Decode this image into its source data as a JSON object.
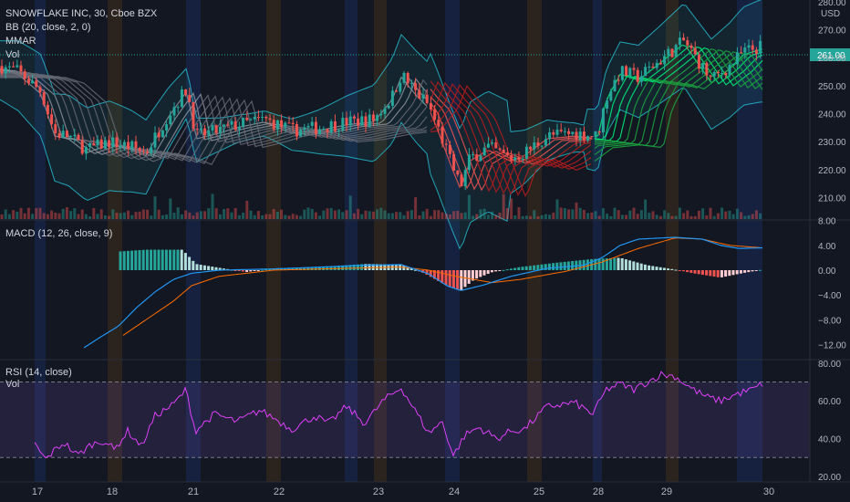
{
  "header": {
    "symbol": "SNOWFLAKE INC, 30, Cboe BZX",
    "indicators": [
      "BB (20, close, 2, 0)",
      "MMAR",
      "Vol"
    ]
  },
  "price_axis": {
    "currency": "USD",
    "top_label": "280.00",
    "ticks": [
      "270.00",
      "260.00",
      "250.00",
      "240.00",
      "230.00",
      "220.00",
      "210.00"
    ],
    "last_price": "261.00",
    "last_price_color": "#26a69a"
  },
  "macd": {
    "label": "MACD (12, 26, close, 9)",
    "ticks": [
      "8.00",
      "4.00",
      "0.00",
      "−4.00",
      "−8.00",
      "−12.00"
    ]
  },
  "rsi": {
    "label": "RSI (14, close)",
    "sublabel": "Vol",
    "ticks": [
      "80.00",
      "60.00",
      "40.00",
      "20.00"
    ]
  },
  "time_axis": {
    "labels": [
      "17",
      "18",
      "21",
      "22",
      "23",
      "24",
      "25",
      "28",
      "29",
      "30"
    ]
  },
  "colors": {
    "background": "#131722",
    "up": "#26a69a",
    "down": "#ef5350",
    "rsi_line": "#e040fb",
    "macd_line": "#2196f3",
    "signal_line": "#ff6d00",
    "bb": "#26c6da"
  }
}
